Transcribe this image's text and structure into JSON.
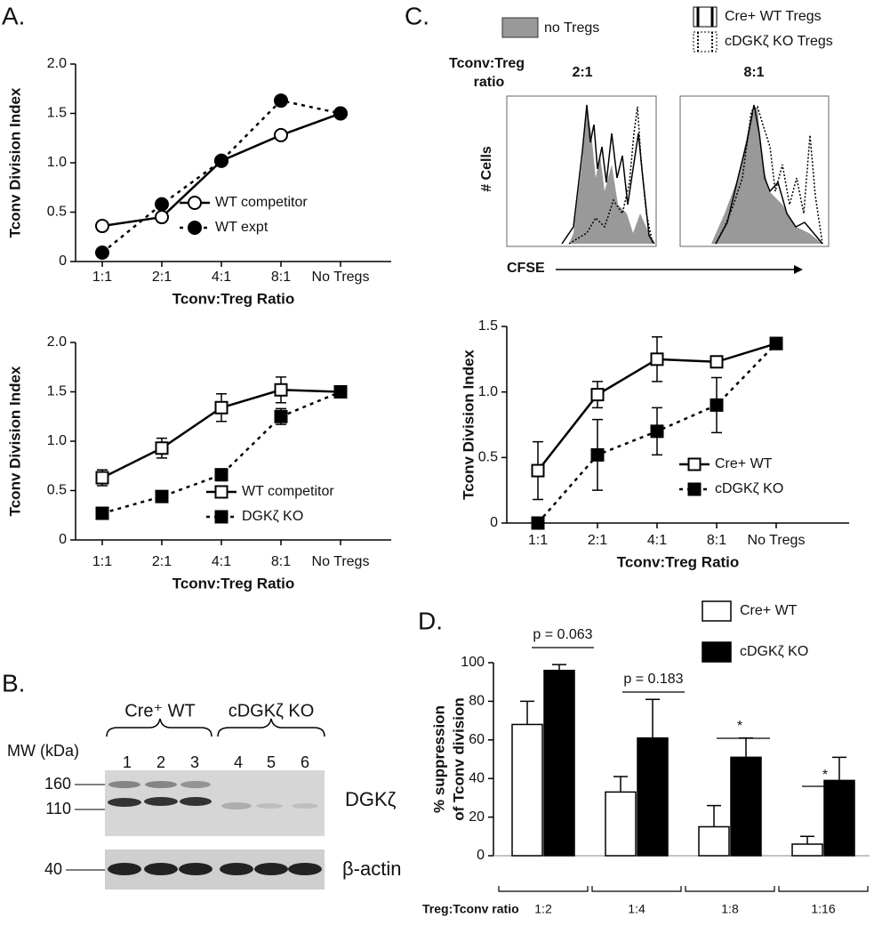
{
  "panel_labels": [
    "A.",
    "B.",
    "C.",
    "D."
  ],
  "chart_data": [
    {
      "type": "line",
      "xlabel": "Tconv:Treg Ratio",
      "ylabel": "Tconv Division Index",
      "categories": [
        "1:1",
        "2:1",
        "4:1",
        "8:1",
        "No Tregs"
      ],
      "ylim": [
        0,
        2
      ],
      "yticks": [
        0,
        0.5,
        {
          "value": 1,
          "label": "1.0"
        },
        1.5,
        {
          "value": 2,
          "label": "2.0"
        }
      ],
      "series": [
        {
          "name": "WT competitor",
          "color": "#000",
          "marker": "circle",
          "filled": false,
          "dashed": false,
          "values": [
            0.36,
            0.45,
            1.02,
            1.28,
            1.5
          ]
        },
        {
          "name": "WT expt",
          "color": "#000",
          "marker": "circle",
          "filled": true,
          "dashed": true,
          "values": [
            0.09,
            0.58,
            1.02,
            1.63,
            1.5
          ]
        }
      ]
    },
    {
      "type": "line",
      "xlabel": "Tconv:Treg Ratio",
      "ylabel": "Tconv Division Index",
      "categories": [
        "1:1",
        "2:1",
        "4:1",
        "8:1",
        "No Tregs"
      ],
      "ylim": [
        0,
        2
      ],
      "yticks": [
        0,
        0.5,
        {
          "value": 1,
          "label": "1.0"
        },
        1.5,
        {
          "value": 2,
          "label": "2.0"
        }
      ],
      "series": [
        {
          "name": "WT competitor",
          "color": "#000",
          "marker": "square",
          "filled": false,
          "dashed": false,
          "values": [
            0.63,
            0.93,
            1.34,
            1.52,
            1.5
          ],
          "errors": [
            0.08,
            0.1,
            0.14,
            0.13,
            0
          ]
        },
        {
          "name": "DGKζ KO",
          "color": "#000",
          "marker": "square",
          "filled": true,
          "dashed": true,
          "values": [
            0.27,
            0.44,
            0.66,
            1.25,
            1.5
          ],
          "errors": [
            0.03,
            0.05,
            0.06,
            0.08,
            0
          ]
        }
      ]
    },
    {
      "type": "line",
      "xlabel": "Tconv:Treg Ratio",
      "ylabel": "Tconv Division Index",
      "categories": [
        "1:1",
        "2:1",
        "4:1",
        "8:1",
        "No Tregs"
      ],
      "ylim": [
        0,
        1.5
      ],
      "yticks": [
        0,
        0.5,
        {
          "value": 1,
          "label": "1.0"
        },
        1.5
      ],
      "series": [
        {
          "name": "Cre+ WT",
          "color": "#000",
          "marker": "square",
          "filled": false,
          "dashed": false,
          "values": [
            0.4,
            0.98,
            1.25,
            1.23,
            1.37
          ],
          "errors": [
            0.22,
            0.1,
            0.17,
            0.03,
            0
          ]
        },
        {
          "name": "cDGKζ KO",
          "color": "#000",
          "marker": "square",
          "filled": true,
          "dashed": true,
          "values": [
            0,
            0.52,
            0.7,
            0.9,
            1.37
          ],
          "errors": [
            0,
            0.27,
            0.18,
            0.21,
            0
          ]
        }
      ]
    },
    {
      "type": "bar",
      "xlabel": "Treg:Tconv ratio",
      "ylabel": [
        "% suppression",
        "of Tconv division"
      ],
      "categories": [
        "1:2",
        "1:4",
        "1:8",
        "1:16"
      ],
      "ylim": [
        0,
        100
      ],
      "yticks": [
        0,
        20,
        40,
        60,
        80,
        100
      ],
      "series": [
        {
          "name": "Cre+ WT",
          "color": "#fff",
          "values": [
            68,
            33,
            15,
            6
          ],
          "errors": [
            12,
            8,
            11,
            4
          ]
        },
        {
          "name": "cDGKζ KO",
          "color": "#000",
          "values": [
            96,
            61,
            51,
            39
          ],
          "errors": [
            3,
            20,
            10,
            12
          ]
        }
      ],
      "annotations": [
        "p = 0.063",
        "p = 0.183",
        "*",
        "*"
      ]
    }
  ],
  "flow": {
    "legend": [
      "no Tregs",
      "Cre+ WT Tregs",
      "cDGKζ KO Tregs"
    ],
    "ratio_label": [
      "Tconv:Treg",
      "ratio"
    ],
    "ratios": [
      "2:1",
      "8:1"
    ],
    "ylabel": "# Cells",
    "xlabel": "CFSE"
  },
  "blot": {
    "groups": [
      "Cre⁺ WT",
      "cDGKζ KO"
    ],
    "mw_label": "MW (kDa)",
    "lanes": [
      1,
      2,
      3,
      4,
      5,
      6
    ],
    "markers": [
      160,
      110,
      40
    ],
    "proteins": [
      "DGKζ",
      "β-actin"
    ]
  }
}
